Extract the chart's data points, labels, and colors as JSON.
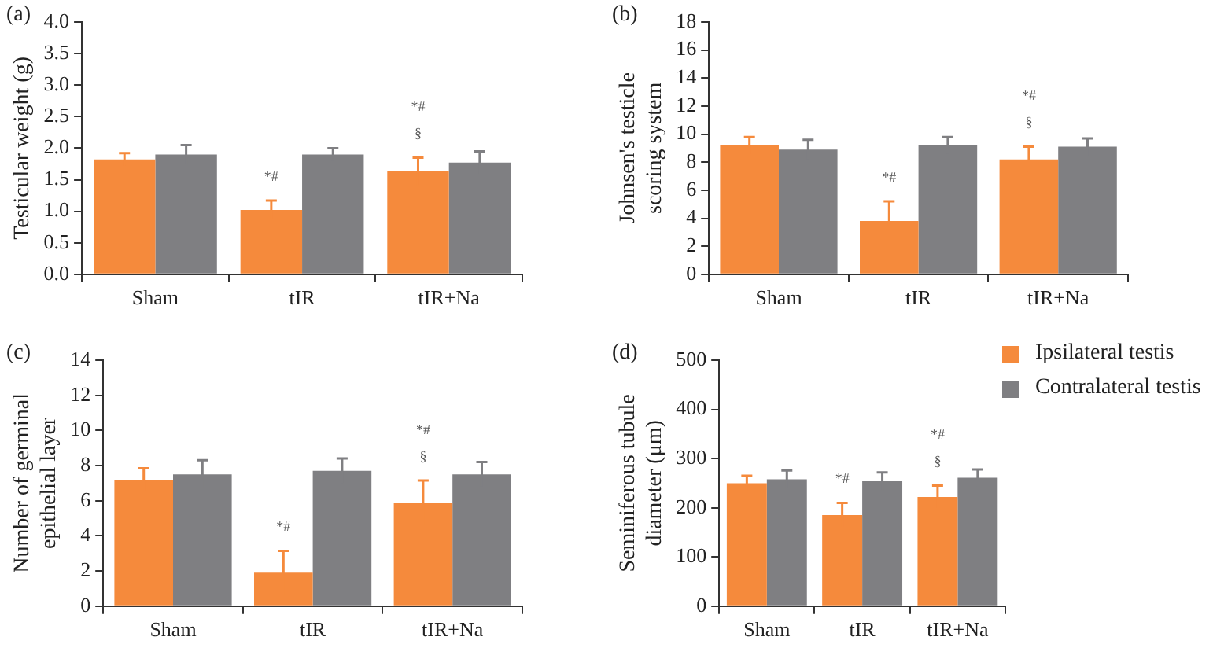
{
  "chart_data": [
    {
      "type": "bar",
      "title": "(a)",
      "ylabel": "Testicular weight (g)",
      "categories": [
        "Sham",
        "tIR",
        "tIR+Na"
      ],
      "ylim": [
        0,
        4
      ],
      "yticks": [
        {
          "value": 0,
          "label": "0.0"
        },
        {
          "value": 0.5,
          "label": "0.5"
        },
        {
          "value": 1,
          "label": "1.0"
        },
        {
          "value": 1.5,
          "label": "1.5"
        },
        {
          "value": 2,
          "label": "2.0"
        },
        {
          "value": 2.5,
          "label": "2.5"
        },
        {
          "value": 3,
          "label": "3.0"
        },
        {
          "value": 3.5,
          "label": "3.5"
        },
        {
          "value": 4,
          "label": "4.0"
        }
      ],
      "grid": false,
      "series": [
        {
          "color": "#f58a3c",
          "values": [
            1.82,
            1.02,
            1.63
          ],
          "errors": [
            0.1,
            0.15,
            0.22
          ]
        },
        {
          "color": "#7f7f82",
          "values": [
            1.9,
            1.9,
            1.77
          ],
          "errors": [
            0.15,
            0.1,
            0.18
          ]
        }
      ],
      "annotations": [
        {
          "text": "*#",
          "x": "tIR",
          "y": 1.17
        },
        {
          "text": "*#\n§",
          "x": "tIR+Na",
          "y": 1.85
        }
      ]
    },
    {
      "type": "bar",
      "title": "(b)",
      "ylabel": "Johnsen's testicle scoring system",
      "categories": [
        "Sham",
        "tIR",
        "tIR+Na"
      ],
      "ylim": [
        0,
        18
      ],
      "yticks": [
        0,
        2,
        4,
        6,
        8,
        10,
        12,
        14,
        16,
        18
      ],
      "grid": false,
      "series": [
        {
          "color": "#f58a3c",
          "values": [
            9.2,
            3.8,
            8.2
          ],
          "errors": [
            0.6,
            1.4,
            0.9
          ]
        },
        {
          "color": "#7f7f82",
          "values": [
            8.9,
            9.2,
            9.1
          ],
          "errors": [
            0.7,
            0.6,
            0.6
          ]
        }
      ],
      "annotations": [
        {
          "text": "*#",
          "x": "tIR",
          "y": 5.2
        },
        {
          "text": "*#\n§",
          "x": "tIR+Na",
          "y": 9.1
        }
      ]
    },
    {
      "type": "bar",
      "title": "(c)",
      "ylabel": "Number of germinal epithelial layer",
      "categories": [
        "Sham",
        "tIR",
        "tIR+Na"
      ],
      "ylim": [
        0,
        14
      ],
      "yticks": [
        0,
        2,
        4,
        6,
        8,
        10,
        12,
        14
      ],
      "grid": false,
      "series": [
        {
          "color": "#f58a3c",
          "values": [
            7.2,
            1.9,
            5.9
          ],
          "errors": [
            0.65,
            1.25,
            1.25
          ]
        },
        {
          "color": "#7f7f82",
          "values": [
            7.5,
            7.7,
            7.5
          ],
          "errors": [
            0.8,
            0.7,
            0.7
          ]
        }
      ],
      "annotations": [
        {
          "text": "*#",
          "x": "tIR",
          "y": 3.15
        },
        {
          "text": "*#\n§",
          "x": "tIR+Na",
          "y": 7.15
        }
      ]
    },
    {
      "type": "bar",
      "title": "(d)",
      "ylabel": "Seminiferous tubule diameter (μm)",
      "categories": [
        "Sham",
        "tIR",
        "tIR+Na"
      ],
      "ylim": [
        0,
        500
      ],
      "yticks": [
        0,
        100,
        200,
        300,
        400,
        500
      ],
      "grid": false,
      "legend": "right",
      "series": [
        {
          "name": "Ipsilateral testis",
          "color": "#f58a3c",
          "values": [
            250,
            185,
            222
          ],
          "errors": [
            15,
            25,
            23
          ]
        },
        {
          "name": "Contralateral testis",
          "color": "#7f7f82",
          "values": [
            258,
            254,
            261
          ],
          "errors": [
            18,
            18,
            17
          ]
        }
      ],
      "annotations": [
        {
          "text": "*#",
          "x": "tIR",
          "y": 210
        },
        {
          "text": "*#\n§",
          "x": "tIR+Na",
          "y": 245
        }
      ]
    }
  ]
}
